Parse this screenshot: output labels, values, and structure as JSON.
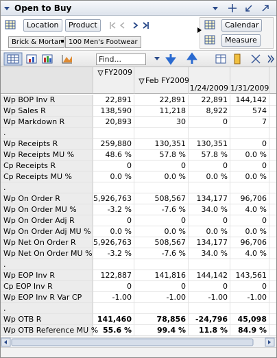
{
  "header": {
    "title": "Open to Buy"
  },
  "toolbar": {
    "location": "Location",
    "product": "Product",
    "calendar": "Calendar",
    "measure": "Measure",
    "location_value": "Brick & Mortar",
    "product_value": "100 Men's Footwear",
    "find": "Find..."
  },
  "table": {
    "columns": [
      "FY2009",
      "Feb FY2009",
      "1/24/2009",
      "1/31/2009"
    ],
    "rows": [
      {
        "label": "Wp BOP Inv R",
        "cells": [
          "22,891",
          "22,891",
          "22,891",
          "144,142"
        ]
      },
      {
        "label": "Wp Sales R",
        "cells": [
          "138,590",
          "11,218",
          "8,922",
          "574"
        ]
      },
      {
        "label": "Wp Markdown R",
        "cells": [
          "20,893",
          "30",
          "0",
          "7"
        ]
      },
      {
        "label": "."
      },
      {
        "label": "Wp Receipts R",
        "cells": [
          "259,880",
          "130,351",
          "130,351",
          "0"
        ]
      },
      {
        "label": "Wp Receipts MU %",
        "cells": [
          "48.6 %",
          "57.8 %",
          "57.8 %",
          "0.0 %"
        ]
      },
      {
        "label": "Cp Receipts R",
        "cells": [
          "0",
          "0",
          "0",
          "0"
        ]
      },
      {
        "label": "Cp Receipts MU %",
        "cells": [
          "0.0 %",
          "0.0 %",
          "0.0 %",
          "0.0 %"
        ]
      },
      {
        "label": "."
      },
      {
        "label": "Wp On Order R",
        "cells": [
          "5,926,763",
          "508,567",
          "134,177",
          "96,706"
        ]
      },
      {
        "label": "Wp On Order MU %",
        "cells": [
          "-3.2 %",
          "-7.6 %",
          "34.0 %",
          "4.0 %"
        ]
      },
      {
        "label": "Wp On Order Adj R",
        "cells": [
          "0",
          "0",
          "0",
          "0"
        ]
      },
      {
        "label": "Wp On Order Adj MU %",
        "cells": [
          "0.0 %",
          "0.0 %",
          "0.0 %",
          "0.0 %"
        ]
      },
      {
        "label": "Wp Net On Order R",
        "cells": [
          "5,926,763",
          "508,567",
          "134,177",
          "96,706"
        ]
      },
      {
        "label": "Wp Net On Order MU %",
        "cells": [
          "-3.2 %",
          "-7.6 %",
          "34.0 %",
          "4.0 %"
        ]
      },
      {
        "label": "."
      },
      {
        "label": "Wp EOP Inv R",
        "cells": [
          "122,887",
          "141,816",
          "144,142",
          "143,561"
        ]
      },
      {
        "label": "Cp EOP Inv R",
        "cells": [
          "0",
          "0",
          "0",
          "0"
        ]
      },
      {
        "label": "Wp EOP Inv R Var CP",
        "cells": [
          "-1.00",
          "-1.00",
          "-1.00",
          "-1.00"
        ]
      },
      {
        "label": "."
      },
      {
        "label": "Wp OTB R",
        "cells": [
          "141,460",
          "78,856",
          "-24,796",
          "45,098"
        ],
        "bold": true
      },
      {
        "label": "Wp OTB Reference MU %",
        "cells": [
          "55.6 %",
          "99.4 %",
          "11.8 %",
          "84.9 %"
        ],
        "bold": true
      }
    ]
  }
}
